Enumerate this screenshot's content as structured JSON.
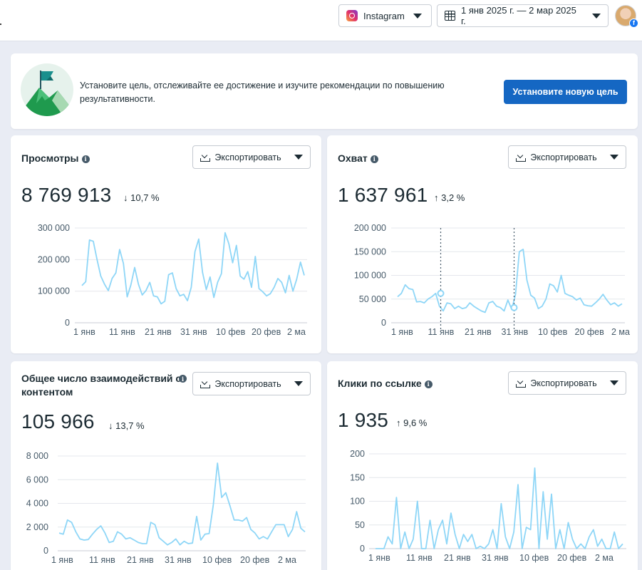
{
  "header": {
    "platform_label": "Instagram",
    "platform_icon": "instagram-icon",
    "date_range": "1 янв 2025 г. — 2 мар 2025 г."
  },
  "goal_banner": {
    "text": "Установите цель, отслеживайте ее достижение и изучите рекомендации по повышению результативности.",
    "button_label": "Установите новую цель"
  },
  "export_label": "Экспортировать",
  "colors": {
    "line": "#8ed6f7",
    "accent_button": "#1567c3",
    "delta_down": "#b3261e",
    "delta_up": "#1e8a57"
  },
  "chart_data": [
    {
      "type": "line",
      "title": "Просмотры",
      "value": "8 769 913",
      "delta": "10,7 %",
      "direction": "down",
      "y_ticks": [
        "300 000",
        "200 000",
        "100 000",
        "0"
      ],
      "ylim": [
        0,
        300000
      ],
      "x_ticks": [
        "1 янв",
        "11 янв",
        "21 янв",
        "31 янв",
        "10 фев",
        "20 фев",
        "2 ма"
      ],
      "values": [
        118000,
        130000,
        262000,
        258000,
        200000,
        148000,
        122000,
        102000,
        140000,
        158000,
        232000,
        188000,
        82000,
        120000,
        175000,
        122000,
        88000,
        102000,
        128000,
        85000,
        82000,
        60000,
        68000,
        152000,
        158000,
        108000,
        85000,
        90000,
        70000,
        112000,
        225000,
        265000,
        160000,
        105000,
        145000,
        80000,
        128000,
        155000,
        285000,
        250000,
        190000,
        245000,
        148000,
        138000,
        162000,
        112000,
        210000,
        108000,
        98000,
        85000,
        92000,
        112000,
        140000,
        128000,
        95000,
        150000,
        100000,
        138000,
        192000,
        150000
      ]
    },
    {
      "type": "line",
      "title": "Охват",
      "value": "1 637 961",
      "delta": "3,2 %",
      "direction": "up",
      "y_ticks": [
        "200 000",
        "150 000",
        "100 000",
        "50 000",
        "0"
      ],
      "ylim": [
        0,
        200000
      ],
      "x_ticks": [
        "1 янв",
        "11 янв",
        "21 янв",
        "31 янв",
        "10 фев",
        "20 фев",
        "2 ма"
      ],
      "values": [
        55000,
        62000,
        80000,
        72000,
        70000,
        44000,
        45000,
        42000,
        50000,
        55000,
        62000,
        35000,
        25000,
        42000,
        40000,
        30000,
        35000,
        30000,
        32000,
        42000,
        35000,
        30000,
        25000,
        22000,
        42000,
        45000,
        35000,
        32000,
        25000,
        48000,
        28000,
        60000,
        150000,
        155000,
        90000,
        58000,
        52000,
        30000,
        35000,
        50000,
        82000,
        78000,
        65000,
        100000,
        62000,
        58000,
        55000,
        48000,
        52000,
        38000,
        36000,
        35000,
        42000,
        50000,
        60000,
        48000,
        38000,
        42000,
        35000,
        40000
      ],
      "markers": [
        {
          "x": "11 янв",
          "y": 62000
        },
        {
          "x": "31 янв",
          "y": 32000
        }
      ]
    },
    {
      "type": "line",
      "title": "Общее число взаимодействий с контентом",
      "value": "105 966",
      "delta": "13,7 %",
      "direction": "down",
      "y_ticks": [
        "8 000",
        "6 000",
        "4 000",
        "2 000",
        "0"
      ],
      "ylim": [
        0,
        8000
      ],
      "x_ticks": [
        "1 янв",
        "11 янв",
        "21 янв",
        "31 янв",
        "10 фев",
        "20 фев",
        "2 ма"
      ],
      "values": [
        1500,
        1400,
        2600,
        2400,
        1600,
        1000,
        900,
        950,
        1400,
        1800,
        2100,
        1500,
        700,
        800,
        1600,
        1400,
        1000,
        1100,
        900,
        700,
        600,
        600,
        2400,
        2200,
        1100,
        800,
        500,
        700,
        1000,
        500,
        800,
        600,
        650,
        2900,
        900,
        1400,
        1450,
        3900,
        7400,
        4500,
        4900,
        3800,
        2600,
        2600,
        2500,
        2800,
        1800,
        1500,
        1000,
        1200,
        1000,
        1600,
        2200,
        2200,
        2200,
        1200,
        1800,
        3300,
        1900,
        1600
      ]
    },
    {
      "type": "line",
      "title": "Клики по ссылке",
      "value": "1 935",
      "delta": "9,6 %",
      "direction": "up",
      "y_ticks": [
        "200",
        "150",
        "100",
        "50",
        "0"
      ],
      "ylim": [
        0,
        200
      ],
      "x_ticks": [
        "1 янв",
        "11 янв",
        "21 янв",
        "31 янв",
        "10 фев",
        "20 фев",
        "2 ма"
      ],
      "values": [
        0,
        0,
        0,
        25,
        10,
        108,
        0,
        35,
        0,
        20,
        100,
        0,
        0,
        60,
        0,
        40,
        60,
        10,
        75,
        30,
        0,
        30,
        15,
        30,
        0,
        5,
        0,
        10,
        40,
        0,
        95,
        25,
        0,
        35,
        135,
        0,
        45,
        40,
        170,
        0,
        120,
        20,
        115,
        0,
        40,
        0,
        55,
        20,
        0,
        10,
        0,
        25,
        40,
        5,
        20,
        0,
        0,
        35,
        0,
        10
      ]
    }
  ]
}
